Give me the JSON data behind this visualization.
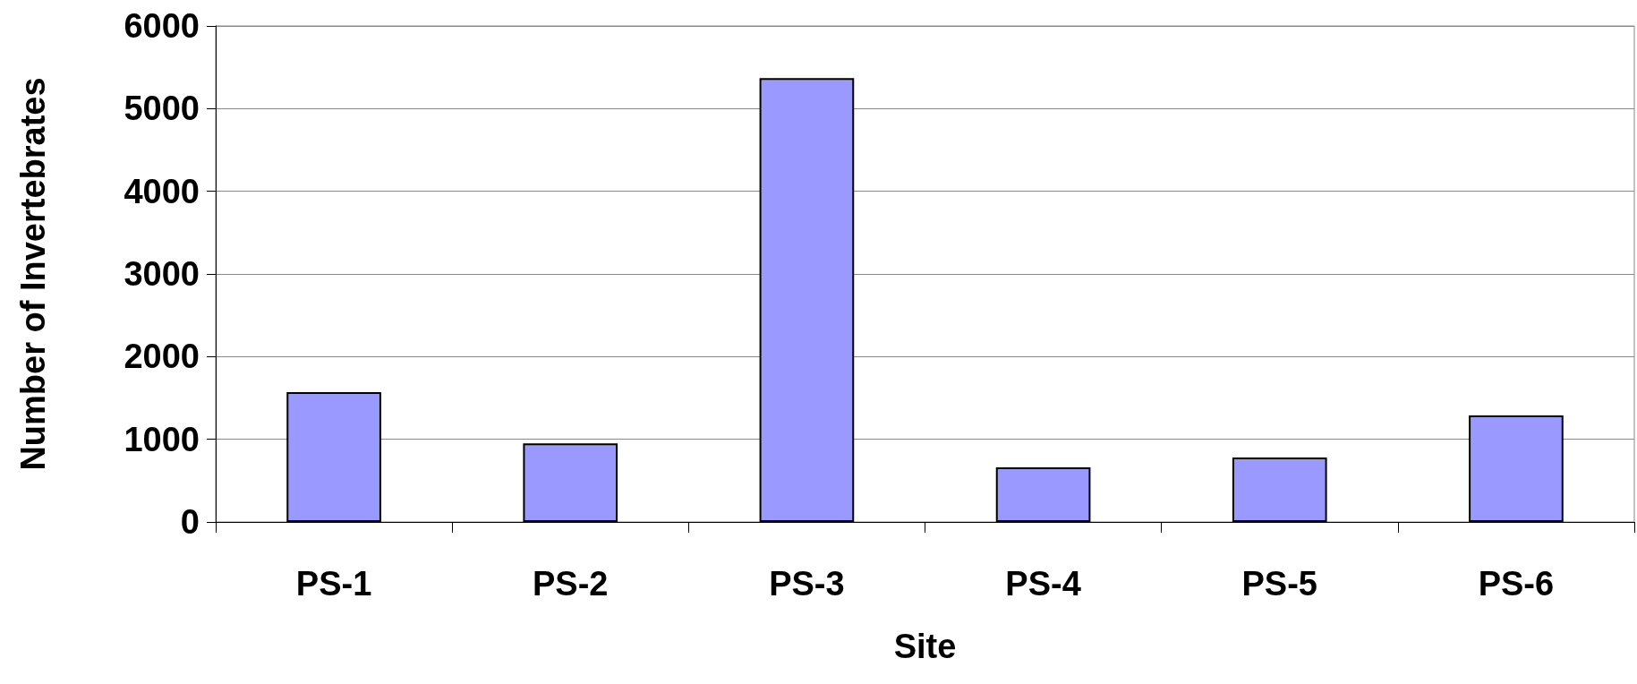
{
  "chart_data": {
    "type": "bar",
    "xlabel": "Site",
    "ylabel": "Number of Invertebrates",
    "categories": [
      "PS-1",
      "PS-2",
      "PS-3",
      "PS-4",
      "PS-5",
      "PS-6"
    ],
    "values": [
      1570,
      950,
      5370,
      660,
      780,
      1290
    ],
    "color": "#9999ff",
    "ylim": [
      0,
      6000
    ],
    "yticks": [
      0,
      1000,
      2000,
      3000,
      4000,
      5000,
      6000
    ],
    "grid": "y"
  }
}
